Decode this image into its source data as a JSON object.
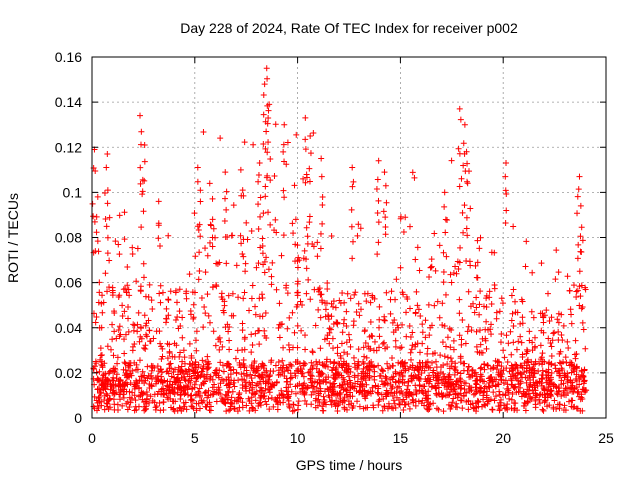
{
  "chart_data": {
    "type": "scatter",
    "title": "Day 228 of 2024, Rate Of TEC Index for receiver p002",
    "xlabel": "GPS time / hours",
    "ylabel": "ROTI / TECUs",
    "xlim": [
      0,
      25
    ],
    "ylim": [
      0,
      0.16
    ],
    "xticks": [
      "0",
      "5",
      "10",
      "15",
      "20",
      "25"
    ],
    "yticks": [
      "0",
      "0.02",
      "0.04",
      "0.06",
      "0.08",
      "0.1",
      "0.12",
      "0.14",
      "0.16"
    ],
    "grid": true,
    "marker": "+",
    "color": "#ff0000",
    "peaks": [
      {
        "x": 0.1,
        "y": 0.119
      },
      {
        "x": 0.3,
        "y": 0.098
      },
      {
        "x": 0.7,
        "y": 0.117
      },
      {
        "x": 0.8,
        "y": 0.101
      },
      {
        "x": 2.4,
        "y": 0.134
      },
      {
        "x": 2.5,
        "y": 0.121
      },
      {
        "x": 3.3,
        "y": 0.096
      },
      {
        "x": 5.2,
        "y": 0.111
      },
      {
        "x": 5.8,
        "y": 0.104
      },
      {
        "x": 6.5,
        "y": 0.109
      },
      {
        "x": 7.3,
        "y": 0.11
      },
      {
        "x": 8.1,
        "y": 0.113
      },
      {
        "x": 8.4,
        "y": 0.148
      },
      {
        "x": 8.5,
        "y": 0.155
      },
      {
        "x": 8.6,
        "y": 0.139
      },
      {
        "x": 9.3,
        "y": 0.13
      },
      {
        "x": 10.4,
        "y": 0.133
      },
      {
        "x": 10.6,
        "y": 0.125
      },
      {
        "x": 11.2,
        "y": 0.115
      },
      {
        "x": 12.7,
        "y": 0.111
      },
      {
        "x": 13.9,
        "y": 0.114
      },
      {
        "x": 14.3,
        "y": 0.109
      },
      {
        "x": 17.2,
        "y": 0.1
      },
      {
        "x": 17.9,
        "y": 0.137
      },
      {
        "x": 18.1,
        "y": 0.13
      },
      {
        "x": 18.2,
        "y": 0.118
      },
      {
        "x": 20.1,
        "y": 0.113
      },
      {
        "x": 23.7,
        "y": 0.107
      },
      {
        "x": 23.8,
        "y": 0.094
      }
    ]
  }
}
